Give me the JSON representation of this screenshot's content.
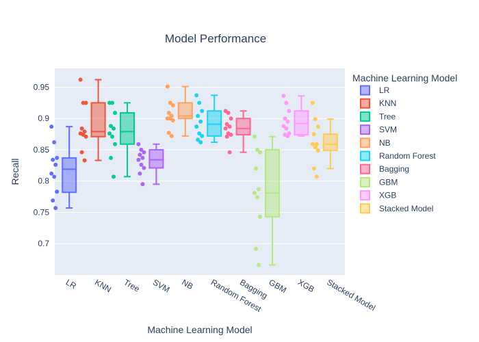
{
  "chart_data": {
    "type": "box",
    "title": "Model Performance",
    "xlabel": "Machine Learning Model",
    "ylabel": "Recall",
    "ylim": [
      0.65,
      0.98
    ],
    "yticks": [
      0.7,
      0.75,
      0.8,
      0.85,
      0.9,
      0.95
    ],
    "ytick_labels": [
      "0.7",
      "0.75",
      "0.8",
      "0.85",
      "0.9",
      "0.95"
    ],
    "grid": true,
    "legend_title": "Machine Learning Model",
    "legend_position": "right",
    "categories": [
      "LR",
      "KNN",
      "Tree",
      "SVM",
      "NB",
      "Random Forest",
      "Bagging",
      "GBM",
      "XGB",
      "Stacked Model"
    ],
    "series": [
      {
        "name": "LR",
        "color": "#636efa",
        "min": 0.757,
        "q1": 0.782,
        "median": 0.819,
        "q3": 0.837,
        "max": 0.887,
        "points": [
          0.887,
          0.862,
          0.837,
          0.834,
          0.826,
          0.812,
          0.807,
          0.783,
          0.769,
          0.757
        ]
      },
      {
        "name": "KNN",
        "color": "#ef553b",
        "min": 0.833,
        "q1": 0.871,
        "median": 0.879,
        "q3": 0.925,
        "max": 0.962,
        "points": [
          0.962,
          0.925,
          0.925,
          0.884,
          0.879,
          0.876,
          0.874,
          0.871,
          0.846,
          0.833
        ]
      },
      {
        "name": "Tree",
        "color": "#00cc96",
        "min": 0.807,
        "q1": 0.859,
        "median": 0.879,
        "q3": 0.909,
        "max": 0.925,
        "points": [
          0.925,
          0.925,
          0.909,
          0.888,
          0.884,
          0.876,
          0.871,
          0.859,
          0.837,
          0.807
        ]
      },
      {
        "name": "SVM",
        "color": "#ab63fa",
        "min": 0.795,
        "q1": 0.821,
        "median": 0.834,
        "q3": 0.85,
        "max": 0.859,
        "points": [
          0.859,
          0.85,
          0.846,
          0.842,
          0.837,
          0.834,
          0.826,
          0.821,
          0.812,
          0.795
        ]
      },
      {
        "name": "NB",
        "color": "#ffa15a",
        "min": 0.872,
        "q1": 0.9,
        "median": 0.904,
        "q3": 0.925,
        "max": 0.951,
        "points": [
          0.951,
          0.925,
          0.921,
          0.909,
          0.904,
          0.9,
          0.9,
          0.897,
          0.877,
          0.872
        ]
      },
      {
        "name": "Random Forest",
        "color": "#19d3f3",
        "min": 0.862,
        "q1": 0.872,
        "median": 0.891,
        "q3": 0.912,
        "max": 0.937,
        "points": [
          0.937,
          0.925,
          0.912,
          0.904,
          0.895,
          0.887,
          0.876,
          0.872,
          0.866,
          0.862
        ]
      },
      {
        "name": "Bagging",
        "color": "#ff6692",
        "min": 0.846,
        "q1": 0.874,
        "median": 0.884,
        "q3": 0.9,
        "max": 0.912,
        "points": [
          0.912,
          0.909,
          0.9,
          0.891,
          0.887,
          0.884,
          0.876,
          0.874,
          0.871,
          0.846
        ]
      },
      {
        "name": "GBM",
        "color": "#b6e880",
        "min": 0.666,
        "q1": 0.743,
        "median": 0.781,
        "q3": 0.85,
        "max": 0.871,
        "points": [
          0.871,
          0.85,
          0.846,
          0.82,
          0.787,
          0.781,
          0.774,
          0.743,
          0.692,
          0.666
        ]
      },
      {
        "name": "XGB",
        "color": "#ff97ff",
        "min": 0.872,
        "q1": 0.874,
        "median": 0.892,
        "q3": 0.912,
        "max": 0.936,
        "points": [
          0.936,
          0.925,
          0.912,
          0.9,
          0.895,
          0.888,
          0.884,
          0.876,
          0.874,
          0.872
        ]
      },
      {
        "name": "Stacked Model",
        "color": "#fecb52",
        "min": 0.82,
        "q1": 0.849,
        "median": 0.859,
        "q3": 0.875,
        "max": 0.899,
        "points": [
          0.925,
          0.899,
          0.887,
          0.875,
          0.859,
          0.859,
          0.854,
          0.849,
          0.82,
          0.807
        ]
      }
    ]
  }
}
